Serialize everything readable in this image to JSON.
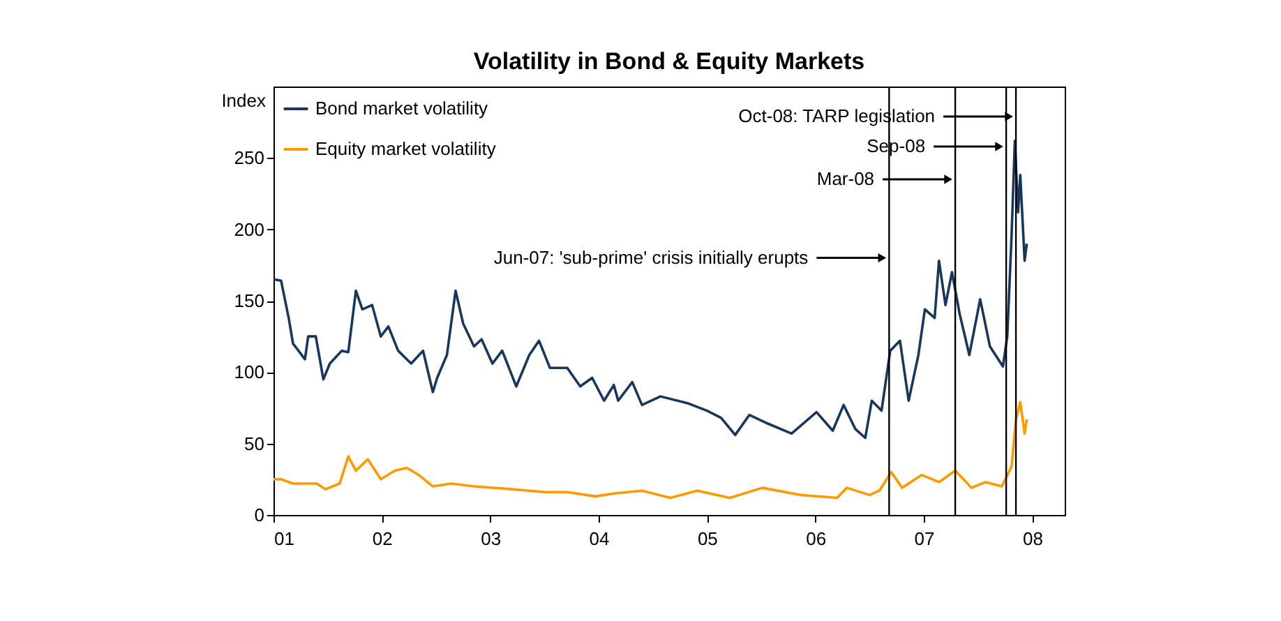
{
  "chart_data": {
    "type": "line",
    "title": "Volatility in Bond & Equity Markets",
    "ylabel": "Index",
    "xlim": [
      2001,
      2008.3
    ],
    "ylim": [
      0,
      300
    ],
    "xticks": [
      {
        "value": 2001,
        "label": "01"
      },
      {
        "value": 2002,
        "label": "02"
      },
      {
        "value": 2003,
        "label": "03"
      },
      {
        "value": 2004,
        "label": "04"
      },
      {
        "value": 2005,
        "label": "05"
      },
      {
        "value": 2006,
        "label": "06"
      },
      {
        "value": 2007,
        "label": "07"
      },
      {
        "value": 2008,
        "label": "08"
      }
    ],
    "yticks": [
      0,
      50,
      100,
      150,
      200,
      250
    ],
    "legend": "top left",
    "line_style": "solid",
    "marker": "none",
    "series": [
      {
        "name": "Bond market volatility",
        "color": "#17375e",
        "x": [
          2001.0,
          2001.07,
          2001.14,
          2001.18,
          2001.29,
          2001.32,
          2001.39,
          2001.46,
          2001.52,
          2001.63,
          2001.69,
          2001.76,
          2001.82,
          2001.91,
          2001.99,
          2002.06,
          2002.15,
          2002.27,
          2002.38,
          2002.47,
          2002.51,
          2002.6,
          2002.68,
          2002.75,
          2002.85,
          2002.92,
          2003.02,
          2003.11,
          2003.24,
          2003.36,
          2003.45,
          2003.55,
          2003.71,
          2003.83,
          2003.94,
          2004.05,
          2004.14,
          2004.18,
          2004.31,
          2004.4,
          2004.57,
          2004.83,
          2005.0,
          2005.13,
          2005.26,
          2005.39,
          2005.56,
          2005.78,
          2006.01,
          2006.16,
          2006.26,
          2006.37,
          2006.46,
          2006.52,
          2006.61,
          2006.69,
          2006.78,
          2006.86,
          2006.95,
          2007.01,
          2007.1,
          2007.14,
          2007.2,
          2007.26,
          2007.33,
          2007.42,
          2007.52,
          2007.61,
          2007.73,
          2007.77,
          2007.81,
          2007.84,
          2007.87,
          2007.89,
          2007.93,
          2007.95
        ],
        "values": [
          165,
          164,
          138,
          120,
          109,
          125,
          125,
          95,
          106,
          115,
          114,
          157,
          144,
          147,
          125,
          132,
          115,
          106,
          115,
          86,
          96,
          112,
          157,
          134,
          118,
          123,
          106,
          115,
          90,
          112,
          122,
          103,
          103,
          90,
          96,
          80,
          91,
          80,
          93,
          77,
          83,
          78,
          73,
          68,
          56,
          70,
          64,
          57,
          72,
          59,
          77,
          60,
          54,
          80,
          73,
          115,
          122,
          80,
          112,
          144,
          138,
          178,
          147,
          170,
          141,
          112,
          151,
          118,
          104,
          125,
          196,
          262,
          212,
          238,
          178,
          190
        ]
      },
      {
        "name": "Equity market volatility",
        "color": "#ff9900",
        "x": [
          2001.0,
          2001.07,
          2001.18,
          2001.4,
          2001.48,
          2001.61,
          2001.69,
          2001.76,
          2001.87,
          2001.99,
          2002.12,
          2002.23,
          2002.34,
          2002.47,
          2002.64,
          2002.85,
          2003.2,
          2003.5,
          2003.71,
          2003.97,
          2004.14,
          2004.4,
          2004.66,
          2004.91,
          2005.21,
          2005.51,
          2005.86,
          2006.2,
          2006.29,
          2006.5,
          2006.59,
          2006.7,
          2006.8,
          2006.98,
          2007.14,
          2007.29,
          2007.44,
          2007.57,
          2007.72,
          2007.81,
          2007.85,
          2007.89,
          2007.93,
          2007.95
        ],
        "values": [
          25,
          25,
          22,
          22,
          18,
          22,
          41,
          31,
          39,
          25,
          31,
          33,
          28,
          20,
          22,
          20,
          18,
          16,
          16,
          13,
          15,
          17,
          12,
          17,
          12,
          19,
          14,
          12,
          19,
          14,
          17,
          30,
          19,
          28,
          23,
          31,
          19,
          23,
          20,
          34,
          67,
          79,
          57,
          67
        ]
      }
    ],
    "ref_lines": [
      {
        "axis": "x",
        "value": 2006.68,
        "color": "#000000"
      },
      {
        "axis": "x",
        "value": 2007.29,
        "color": "#000000"
      },
      {
        "axis": "x",
        "value": 2007.76,
        "color": "#000000"
      },
      {
        "axis": "x",
        "value": 2007.85,
        "color": "#000000"
      }
    ],
    "annotations": [
      {
        "text": "Oct-08: TARP legislation",
        "x": 2007.85,
        "y": 279
      },
      {
        "text": "Sep-08",
        "x": 2007.76,
        "y": 258
      },
      {
        "text": "Mar-08",
        "x": 2007.29,
        "y": 235
      },
      {
        "text": "Jun-07: 'sub-prime' crisis initially erupts",
        "x": 2006.68,
        "y": 180
      }
    ]
  }
}
